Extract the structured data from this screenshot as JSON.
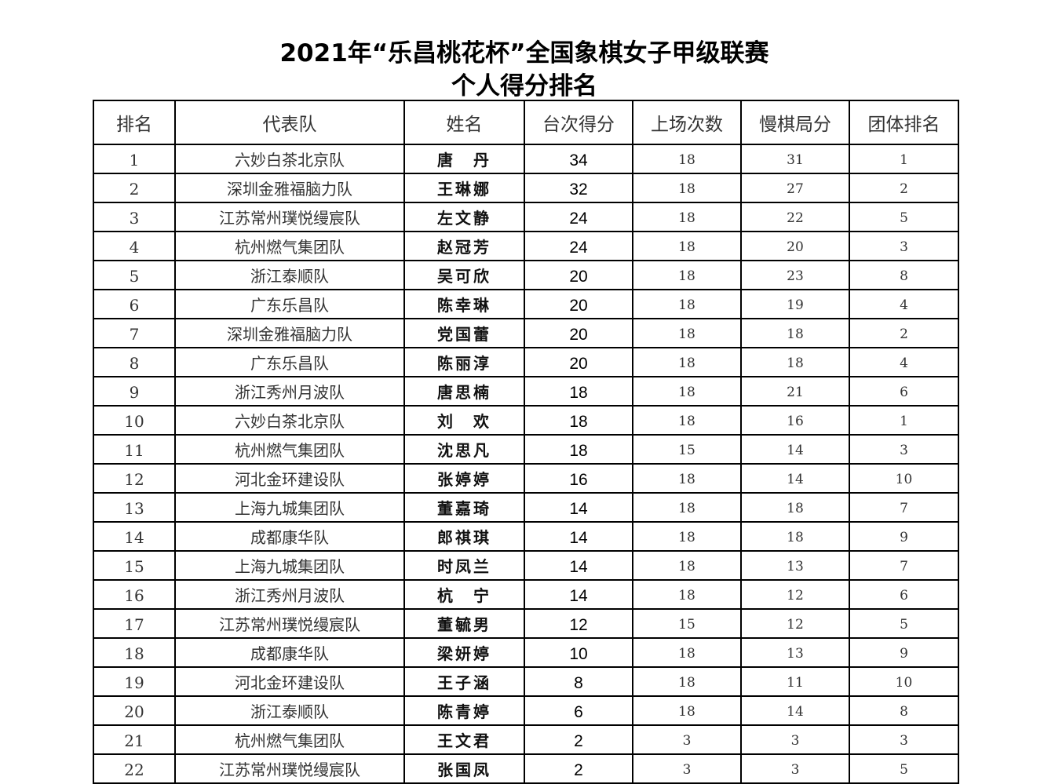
{
  "title": "2021年“乐昌桃花杯”全国象棋女子甲级联赛",
  "subtitle": "个人得分排名",
  "columns": [
    "排名",
    "代表队",
    "姓名",
    "台次得分",
    "上场次数",
    "慢棋局分",
    "团体排名"
  ],
  "rows": [
    [
      "1",
      "六妙白茶北京队",
      "唐　丹",
      "34",
      "18",
      "31",
      "1"
    ],
    [
      "2",
      "深圳金雅福脑力队",
      "王琳娜",
      "32",
      "18",
      "27",
      "2"
    ],
    [
      "3",
      "江苏常州璞悦缦宸队",
      "左文静",
      "24",
      "18",
      "22",
      "5"
    ],
    [
      "4",
      "杭州燃气集团队",
      "赵冠芳",
      "24",
      "18",
      "20",
      "3"
    ],
    [
      "5",
      "浙江泰顺队",
      "吴可欣",
      "20",
      "18",
      "23",
      "8"
    ],
    [
      "6",
      "广东乐昌队",
      "陈幸琳",
      "20",
      "18",
      "19",
      "4"
    ],
    [
      "7",
      "深圳金雅福脑力队",
      "党国蕾",
      "20",
      "18",
      "18",
      "2"
    ],
    [
      "8",
      "广东乐昌队",
      "陈丽淳",
      "20",
      "18",
      "18",
      "4"
    ],
    [
      "9",
      "浙江秀州月波队",
      "唐思楠",
      "18",
      "18",
      "21",
      "6"
    ],
    [
      "10",
      "六妙白茶北京队",
      "刘　欢",
      "18",
      "18",
      "16",
      "1"
    ],
    [
      "11",
      "杭州燃气集团队",
      "沈思凡",
      "18",
      "15",
      "14",
      "3"
    ],
    [
      "12",
      "河北金环建设队",
      "张婷婷",
      "16",
      "18",
      "14",
      "10"
    ],
    [
      "13",
      "上海九城集团队",
      "董嘉琦",
      "14",
      "18",
      "18",
      "7"
    ],
    [
      "14",
      "成都康华队",
      "郎祺琪",
      "14",
      "18",
      "18",
      "9"
    ],
    [
      "15",
      "上海九城集团队",
      "时凤兰",
      "14",
      "18",
      "13",
      "7"
    ],
    [
      "16",
      "浙江秀州月波队",
      "杭　宁",
      "14",
      "18",
      "12",
      "6"
    ],
    [
      "17",
      "江苏常州璞悦缦宸队",
      "董毓男",
      "12",
      "15",
      "12",
      "5"
    ],
    [
      "18",
      "成都康华队",
      "梁妍婷",
      "10",
      "18",
      "13",
      "9"
    ],
    [
      "19",
      "河北金环建设队",
      "王子涵",
      "8",
      "18",
      "11",
      "10"
    ],
    [
      "20",
      "浙江泰顺队",
      "陈青婷",
      "6",
      "18",
      "14",
      "8"
    ],
    [
      "21",
      "杭州燃气集团队",
      "王文君",
      "2",
      "3",
      "3",
      "3"
    ],
    [
      "22",
      "江苏常州璞悦缦宸队",
      "张国凤",
      "2",
      "3",
      "3",
      "5"
    ]
  ]
}
